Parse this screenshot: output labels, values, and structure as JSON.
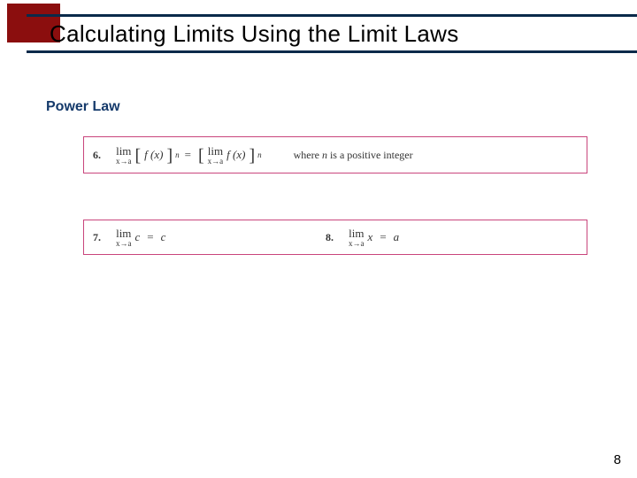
{
  "header": {
    "title": "Calculating Limits Using the Limit Laws",
    "red_block_color": "#8b0e0e",
    "rule_color": "#0a2a4a",
    "title_fontsize": 26,
    "title_color": "#000000"
  },
  "subtitle": {
    "text": "Power Law",
    "color": "#153a6b",
    "fontsize": 16
  },
  "laws": {
    "box_border_color": "#c9457c",
    "law6": {
      "number": "6.",
      "lim_word": "lim",
      "lim_sub": "x→a",
      "lhs_open": "[",
      "lhs_fx": "f (x)",
      "lhs_close": "]",
      "sup": "n",
      "equals": "=",
      "rhs_open": "[",
      "rhs_close": "]",
      "where": "where ",
      "where_n": "n",
      "where_tail": " is a positive integer"
    },
    "law7": {
      "number": "7.",
      "lim_word": "lim",
      "lim_sub": "x→a",
      "c": "c",
      "equals": "=",
      "rhs": "c"
    },
    "law8": {
      "number": "8.",
      "lim_word": "lim",
      "lim_sub": "x→a",
      "x": "x",
      "equals": "=",
      "rhs": "a"
    }
  },
  "page_number": "8"
}
